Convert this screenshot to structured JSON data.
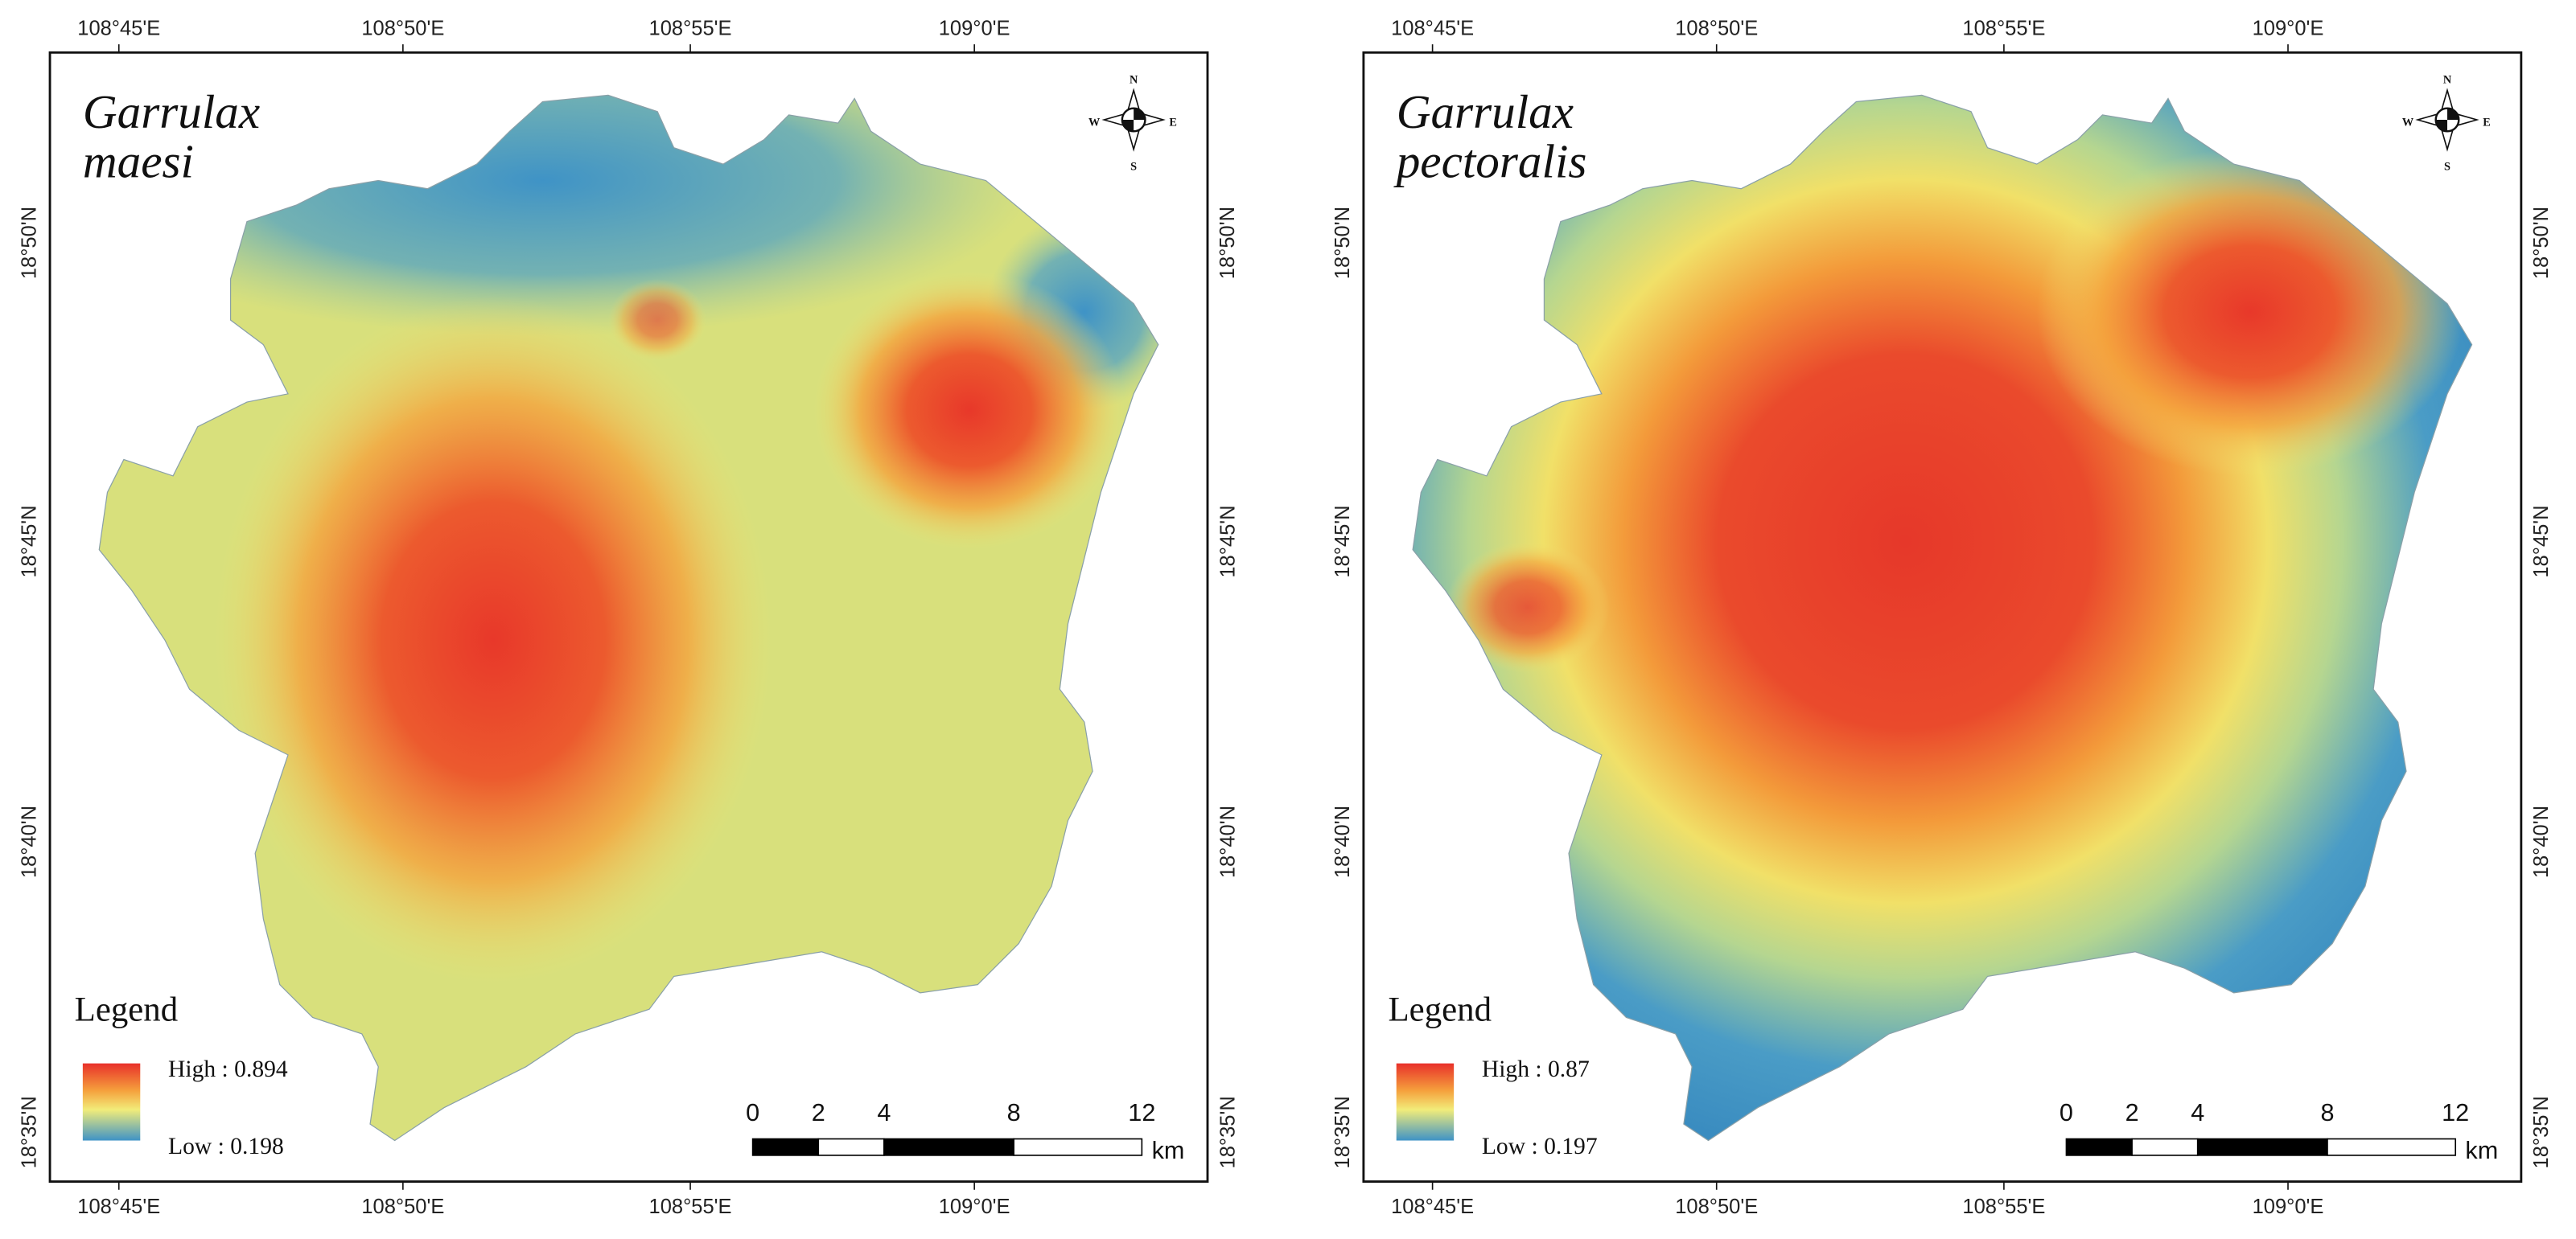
{
  "panels": [
    {
      "title": [
        "Garrulax",
        "maesi"
      ],
      "legend": {
        "title": "Legend",
        "high": "High : 0.894",
        "low": "Low : 0.198"
      }
    },
    {
      "title": [
        "Garrulax",
        "pectoralis"
      ],
      "legend": {
        "title": "Legend",
        "high": "High : 0.87",
        "low": "Low : 0.197"
      }
    }
  ],
  "axes": {
    "lon": [
      "108°45'E",
      "108°50'E",
      "108°55'E",
      "109°0'E"
    ],
    "lat": [
      "18°50'N",
      "18°45'N",
      "18°40'N",
      "18°35'N"
    ]
  },
  "scale_bar": {
    "ticks": [
      "0",
      "2",
      "4",
      "8",
      "12"
    ],
    "unit": "km"
  },
  "compass": {
    "n": "N",
    "e": "E",
    "s": "S",
    "w": "W"
  }
}
